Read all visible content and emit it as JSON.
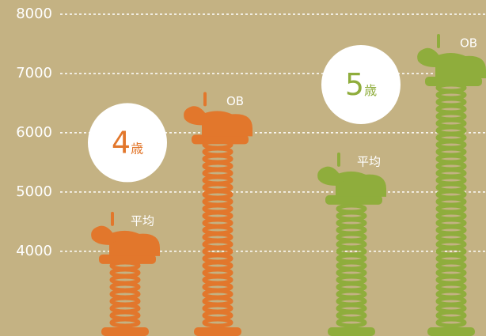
{
  "chart_data": {
    "type": "bar",
    "categories": [
      "4",
      "5"
    ],
    "unit": "歳",
    "colors": [
      "#e2772c",
      "#8fad3c"
    ],
    "series": [
      {
        "name": "平均",
        "values": [
          4240,
          5240
        ]
      },
      {
        "name": "OB",
        "values": [
          6260,
          7240
        ]
      }
    ],
    "ylim": [
      2570,
      8240
    ],
    "yticks": [
      4000,
      5000,
      6000,
      7000,
      8000
    ],
    "grid": true
  }
}
